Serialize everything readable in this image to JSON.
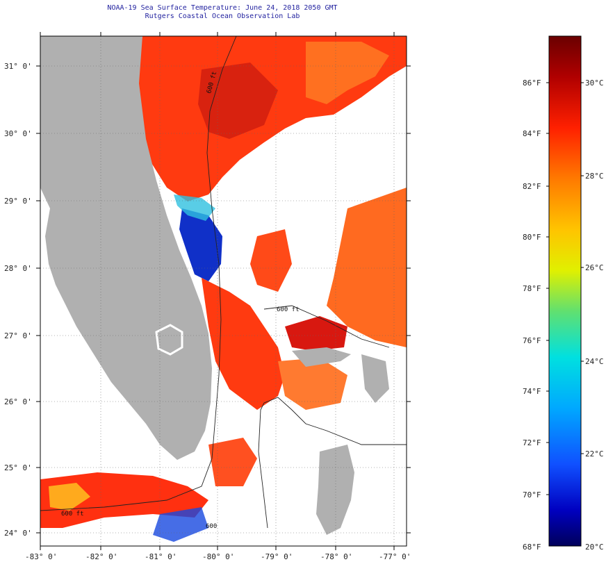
{
  "header": {
    "title_line1": "NOAA-19 Sea Surface Temperature:  June 24, 2018 2050 GMT",
    "title_line2": "Rutgers Coastal Ocean Observation Lab"
  },
  "map": {
    "lat_labels": [
      "31° 0'",
      "30° 0'",
      "29° 0'",
      "28° 0'",
      "27° 0'",
      "26° 0'",
      "25° 0'",
      "24° 0'"
    ],
    "lon_labels": [
      "-83° 0'",
      "-82° 0'",
      "-81° 0'",
      "-80° 0'",
      "-79° 0'",
      "-78° 0'",
      "-77° 0'"
    ],
    "shelf_labels": [
      "600 ft",
      "600 ft",
      "600 ft",
      "600"
    ],
    "land_color": "#b0b0b0",
    "cloud_color": "#ffffff"
  },
  "colorbar": {
    "fahrenheit_labels": [
      "86°F",
      "84°F",
      "82°F",
      "80°F",
      "78°F",
      "76°F",
      "74°F",
      "72°F",
      "70°F",
      "68°F"
    ],
    "celsius_labels": [
      "30°C",
      "28°C",
      "26°C",
      "24°C",
      "22°C",
      "20°C"
    ],
    "colors": [
      "#7a0000",
      "#c80000",
      "#ff3a00",
      "#ff8c00",
      "#ffcc00",
      "#e8f000",
      "#80e060",
      "#00d8d0",
      "#00a0ff",
      "#1040ff",
      "#0000b0",
      "#00006a"
    ]
  }
}
